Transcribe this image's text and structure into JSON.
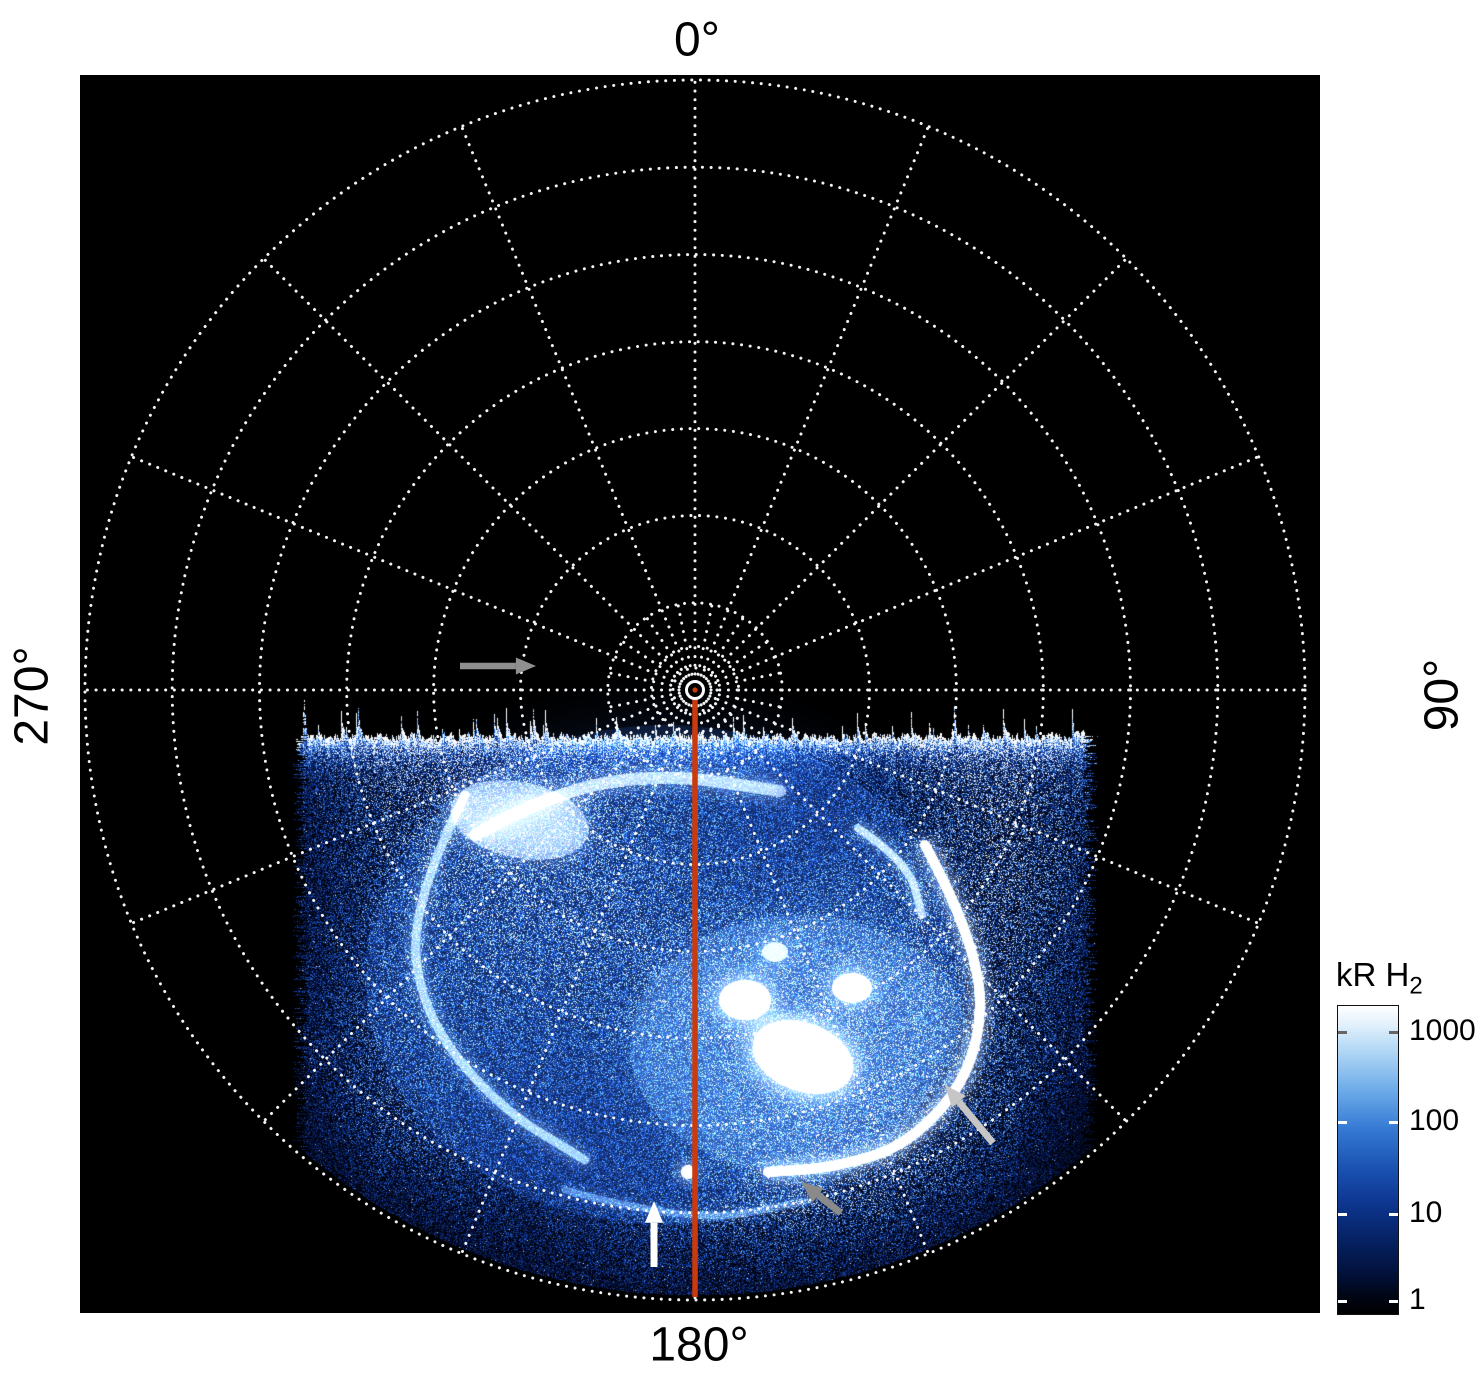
{
  "figure": {
    "angle_labels": {
      "top": "0°",
      "right": "90°",
      "bottom": "180°",
      "left": "270°"
    }
  },
  "colorbar": {
    "title_main": "kR H",
    "title_sub": "2",
    "ticks": [
      "1000",
      "100",
      "10",
      "1"
    ]
  },
  "chart_data": {
    "type": "heatmap",
    "projection": "polar",
    "title": "",
    "description": "Polar-projection map of auroral H2 emission: black sky, white dotted latitude/longitude grid, blue-to-white log-scaled emission filling the 90°-270° (lower) half of the disc, red line marking the 180° meridian.",
    "angle_tick_labels": [
      "0°",
      "90°",
      "180°",
      "270°"
    ],
    "grid": {
      "style": "dotted",
      "color": "#ffffff",
      "ring_fractions": [
        1,
        0.857,
        0.714,
        0.571,
        0.4285,
        0.286,
        0.143,
        0.0715,
        0.036
      ],
      "major_spoke_step_deg": 22.5,
      "minor_spoke_step_deg": 11.25
    },
    "meridian_line": {
      "angle_deg": 180,
      "color": "#cb3a0c"
    },
    "emission": {
      "azimuth_range_deg": [
        90,
        270
      ],
      "radial_extent": "from just below the pole to the outer edge of the disc",
      "texture": "speckled blue noise with bright white auroral arcs and patches",
      "peak_value_kR": 1000,
      "min_value_kR": 1
    },
    "colorbar": {
      "label": "kR H2",
      "scale": "log",
      "tick_values": [
        1000,
        100,
        10,
        1
      ],
      "gradient_top_to_bottom": [
        "#ffffff",
        "#8fc4f0",
        "#2e6fd0",
        "#0a2a72",
        "#000000"
      ]
    },
    "annotations": [
      {
        "type": "arrow",
        "color": "#8f8f8f",
        "direction": "right",
        "note": "points toward the pole from the 270° side"
      },
      {
        "type": "arrow",
        "color": "#ffffff",
        "direction": "up",
        "note": "points to a faint spot on the 180° meridian near the outer edge"
      },
      {
        "type": "arrow",
        "color": "#8a8a8a",
        "direction": "up-left",
        "note": "points to diffuse emission equatorward of the main oval"
      },
      {
        "type": "arrow",
        "color": "#c6c6c6",
        "direction": "up-left",
        "note": "points to the bright arc on the right-hand side"
      }
    ]
  }
}
